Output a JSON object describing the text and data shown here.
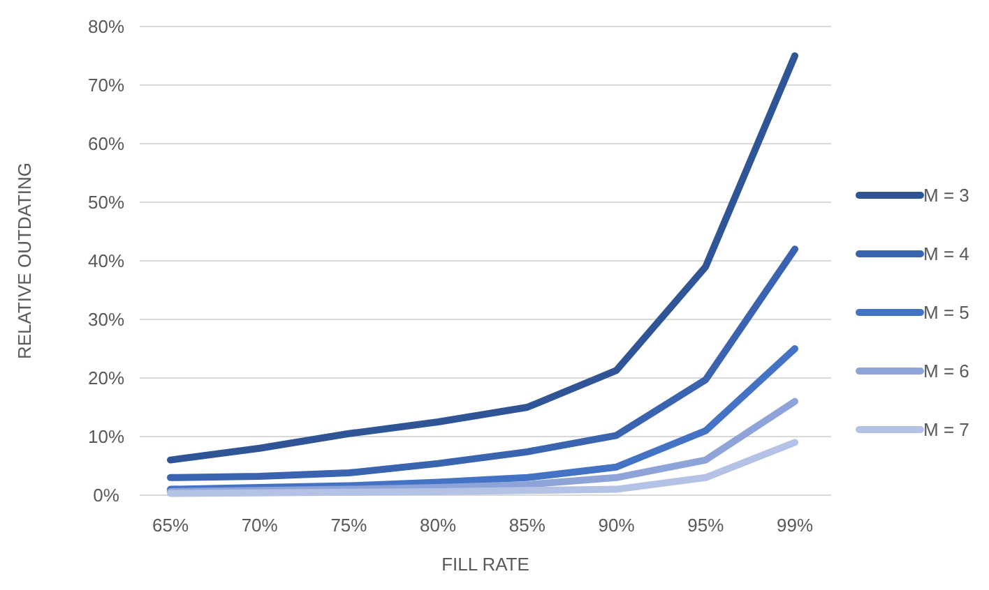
{
  "chart_data": {
    "type": "line",
    "xlabel": "FILL RATE",
    "ylabel": "RELATIVE OUTDATING",
    "categories": [
      "65%",
      "70%",
      "75%",
      "80%",
      "85%",
      "90%",
      "95%",
      "99%"
    ],
    "series": [
      {
        "name": "M = 3",
        "color": "#2f5597",
        "values": [
          6,
          8,
          10.5,
          12.5,
          15,
          21.3,
          39,
          75
        ]
      },
      {
        "name": "M = 4",
        "color": "#3a63b0",
        "values": [
          3,
          3.2,
          3.8,
          5.4,
          7.4,
          10.2,
          19.7,
          42
        ]
      },
      {
        "name": "M = 5",
        "color": "#4472c4",
        "values": [
          1,
          1.3,
          1.6,
          2.2,
          3,
          4.8,
          11,
          25
        ]
      },
      {
        "name": "M = 6",
        "color": "#8ea4d8",
        "values": [
          0.6,
          0.8,
          1,
          1.3,
          1.8,
          3,
          6,
          16
        ]
      },
      {
        "name": "M = 7",
        "color": "#b4c2e6",
        "values": [
          0.3,
          0.4,
          0.5,
          0.6,
          0.8,
          1,
          3,
          9
        ]
      }
    ],
    "ylim": [
      0,
      80
    ],
    "yticks": [
      {
        "value": 0,
        "label": "0%"
      },
      {
        "value": 10,
        "label": "10%"
      },
      {
        "value": 20,
        "label": "20%"
      },
      {
        "value": 30,
        "label": "30%"
      },
      {
        "value": 40,
        "label": "40%"
      },
      {
        "value": 50,
        "label": "50%"
      },
      {
        "value": 60,
        "label": "60%"
      },
      {
        "value": 70,
        "label": "70%"
      },
      {
        "value": 80,
        "label": "80%"
      }
    ],
    "grid": "y",
    "legend": "right",
    "marker": "none",
    "line_style": "solid"
  }
}
